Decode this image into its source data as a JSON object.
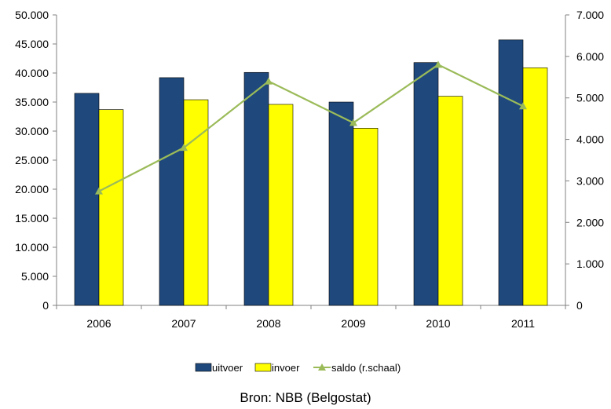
{
  "chart_data": {
    "type": "bar",
    "categories": [
      "2006",
      "2007",
      "2008",
      "2009",
      "2010",
      "2011"
    ],
    "series": [
      {
        "name": "uitvoer",
        "type": "bar",
        "axis": "left",
        "color": "#1F497D",
        "values": [
          36500,
          39200,
          40100,
          35000,
          41800,
          45700
        ]
      },
      {
        "name": "invoer",
        "type": "bar",
        "axis": "left",
        "color": "#FFFF00",
        "values": [
          33700,
          35400,
          34600,
          30500,
          36000,
          40900
        ]
      },
      {
        "name": "saldo (r.schaal)",
        "type": "line",
        "axis": "right",
        "color": "#9BBB59",
        "marker": "triangle",
        "values": [
          2750,
          3800,
          5400,
          4400,
          5800,
          4800
        ]
      }
    ],
    "y_left": {
      "min": 0,
      "max": 50000,
      "step": 5000,
      "ticks": [
        "0",
        "5.000",
        "10.000",
        "15.000",
        "20.000",
        "25.000",
        "30.000",
        "35.000",
        "40.000",
        "45.000",
        "50.000"
      ]
    },
    "y_right": {
      "min": 0,
      "max": 7000,
      "step": 1000,
      "ticks": [
        "0",
        "1.000",
        "2.000",
        "3.000",
        "4.000",
        "5.000",
        "6.000",
        "7.000"
      ]
    },
    "grid": false,
    "legend_position": "bottom",
    "colors": {
      "bar_outline": "#000000",
      "axis": "#808080"
    }
  },
  "source": "Bron: NBB (Belgostat)"
}
